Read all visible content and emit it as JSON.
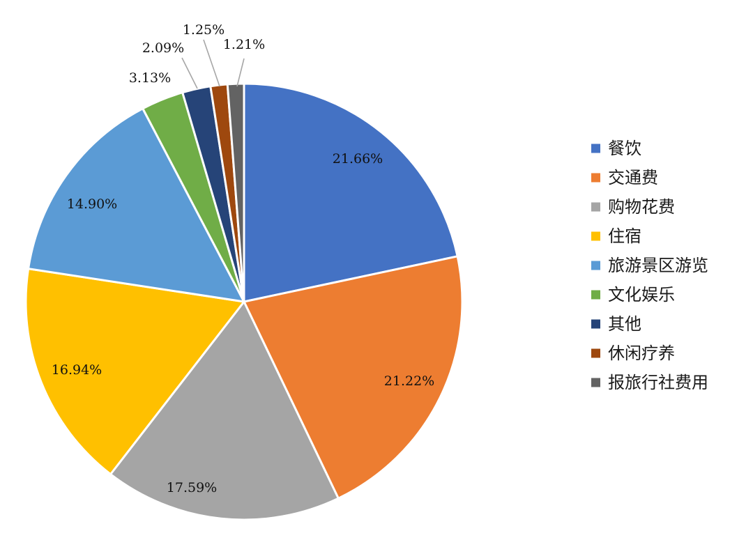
{
  "chart_data": {
    "type": "pie",
    "legend_position": "right",
    "start_angle_deg": 0,
    "direction": "clockwise",
    "slices": [
      {
        "name": "餐饮",
        "value": 21.66,
        "label": "21.66%",
        "color": "#4472C4"
      },
      {
        "name": "交通费",
        "value": 21.22,
        "label": "21.22%",
        "color": "#ED7D31"
      },
      {
        "name": "购物花费",
        "value": 17.59,
        "label": "17.59%",
        "color": "#A5A5A5"
      },
      {
        "name": "住宿",
        "value": 16.94,
        "label": "16.94%",
        "color": "#FFC000"
      },
      {
        "name": "旅游景区游览",
        "value": 14.9,
        "label": "14.90%",
        "color": "#5B9BD5"
      },
      {
        "name": "文化娱乐",
        "value": 3.13,
        "label": "3.13%",
        "color": "#70AD47"
      },
      {
        "name": "其他",
        "value": 2.09,
        "label": "2.09%",
        "color": "#264478"
      },
      {
        "name": "休闲疗养",
        "value": 1.25,
        "label": "1.25%",
        "color": "#9E480E"
      },
      {
        "name": "报旅行社费用",
        "value": 1.21,
        "label": "1.21%",
        "color": "#636363"
      }
    ]
  }
}
